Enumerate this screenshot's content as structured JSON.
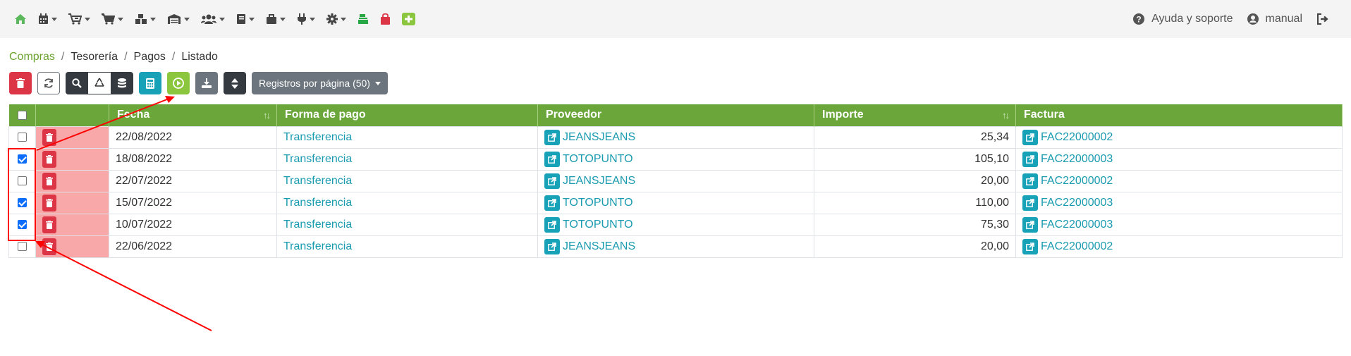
{
  "nav": {
    "icons": [
      "home-icon",
      "calendar-icon",
      "cart-arrow-icon",
      "cart-icon",
      "boxes-icon",
      "warehouse-icon",
      "users-icon",
      "book-icon",
      "briefcase-icon",
      "plug-icon",
      "cog-icon",
      "cash-register-icon",
      "shopping-bag-icon",
      "plus-square-icon"
    ],
    "help_label": "Ayuda y soporte",
    "user_label": "manual"
  },
  "breadcrumb": [
    "Compras",
    "Tesorería",
    "Pagos",
    "Listado"
  ],
  "toolbar": {
    "page_size_label": "Registros por página (50)"
  },
  "table": {
    "columns": [
      "Fecha",
      "Forma de pago",
      "Proveedor",
      "Importe",
      "Factura"
    ],
    "rows": [
      {
        "checked": false,
        "fecha": "22/08/2022",
        "forma": "Transferencia",
        "proveedor": "JEANSJEANS",
        "importe": "25,34",
        "factura": "FAC22000002"
      },
      {
        "checked": true,
        "fecha": "18/08/2022",
        "forma": "Transferencia",
        "proveedor": "TOTOPUNTO",
        "importe": "105,10",
        "factura": "FAC22000003"
      },
      {
        "checked": false,
        "fecha": "22/07/2022",
        "forma": "Transferencia",
        "proveedor": "JEANSJEANS",
        "importe": "20,00",
        "factura": "FAC22000002"
      },
      {
        "checked": true,
        "fecha": "15/07/2022",
        "forma": "Transferencia",
        "proveedor": "TOTOPUNTO",
        "importe": "110,00",
        "factura": "FAC22000003"
      },
      {
        "checked": true,
        "fecha": "10/07/2022",
        "forma": "Transferencia",
        "proveedor": "TOTOPUNTO",
        "importe": "75,30",
        "factura": "FAC22000003"
      },
      {
        "checked": false,
        "fecha": "22/06/2022",
        "forma": "Transferencia",
        "proveedor": "JEANSJEANS",
        "importe": "20,00",
        "factura": "FAC22000002"
      }
    ]
  },
  "colors": {
    "accent_green": "#6aa63a",
    "annotation_red": "#ff0000"
  }
}
